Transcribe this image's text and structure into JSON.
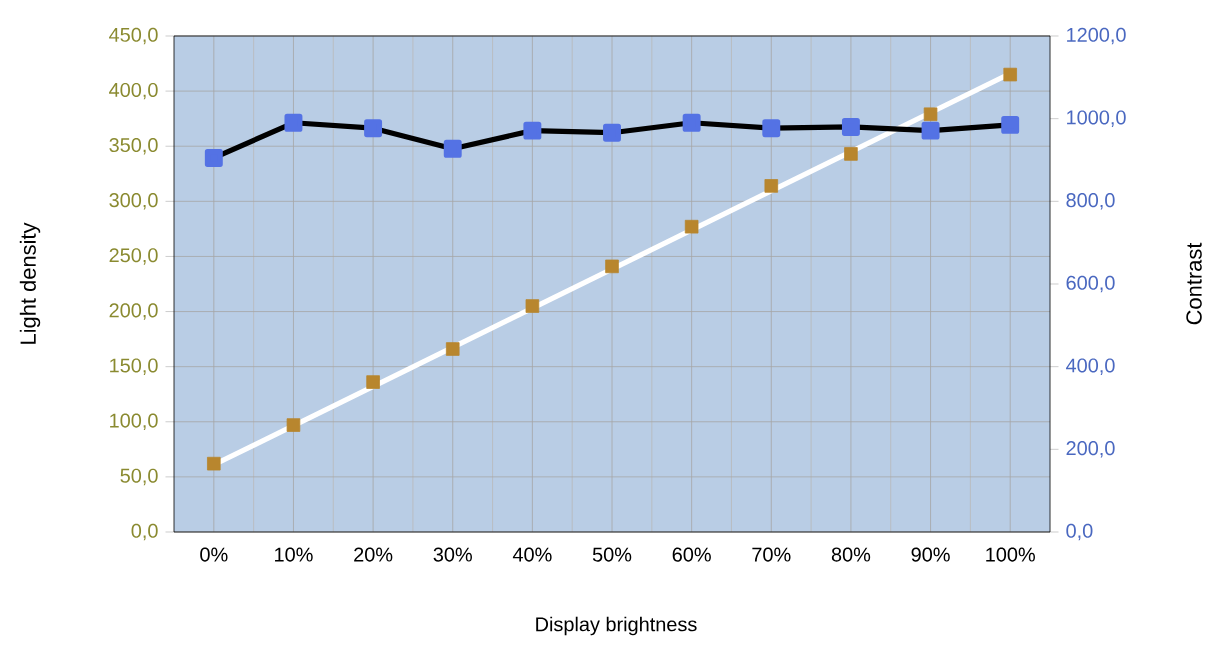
{
  "chart_data": {
    "type": "line",
    "xlabel": "Display brightness",
    "ylabel": "Light density",
    "y2label": "Contrast",
    "categories": [
      "0%",
      "10%",
      "20%",
      "30%",
      "40%",
      "50%",
      "60%",
      "70%",
      "80%",
      "90%",
      "100%"
    ],
    "series": [
      {
        "type": "scatter",
        "color": "#b8862e",
        "marker": "square",
        "values": [
          62,
          97,
          136,
          166,
          205,
          241,
          277,
          314,
          343,
          379,
          415
        ]
      },
      {
        "color": "#000000",
        "marker": "square",
        "axis": "y2",
        "values": [
          905,
          990,
          977,
          927,
          971,
          966,
          990,
          977,
          980,
          971,
          985
        ]
      },
      {
        "type": "line",
        "color": "#ffffff",
        "marker": "none",
        "x": [
          "0%",
          "100%"
        ],
        "values": [
          61,
          416
        ]
      }
    ],
    "ylim": [
      0,
      450
    ],
    "yticks": [
      {
        "value": 0,
        "label": "0,0"
      },
      {
        "value": 50,
        "label": "50,0"
      },
      {
        "value": 100,
        "label": "100,0"
      },
      {
        "value": 150,
        "label": "150,0"
      },
      {
        "value": 200,
        "label": "200,0"
      },
      {
        "value": 250,
        "label": "250,0"
      },
      {
        "value": 300,
        "label": "300,0"
      },
      {
        "value": 350,
        "label": "350,0"
      },
      {
        "value": 400,
        "label": "400,0"
      },
      {
        "value": 450,
        "label": "450,0"
      }
    ],
    "y2lim": [
      0,
      1200
    ],
    "y2ticks": [
      {
        "value": 0,
        "label": "0,0"
      },
      {
        "value": 200,
        "label": "200,0"
      },
      {
        "value": 400,
        "label": "400,0"
      },
      {
        "value": 600,
        "label": "600,0"
      },
      {
        "value": 800,
        "label": "800,0"
      },
      {
        "value": 1000,
        "label": "1000,0"
      },
      {
        "value": 1200,
        "label": "1200,0"
      }
    ],
    "grid": true
  }
}
